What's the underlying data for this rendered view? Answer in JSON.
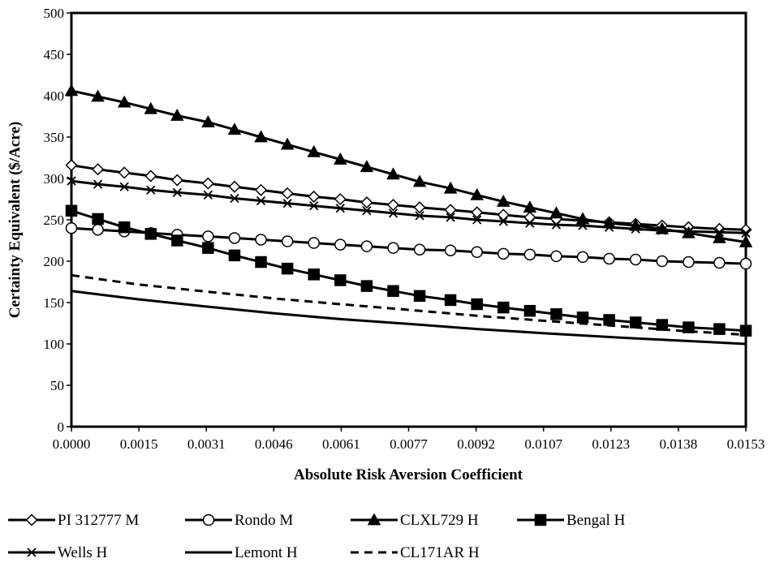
{
  "chart_data": {
    "type": "line",
    "title": "",
    "xlabel": "Absolute Risk Aversion Coefficient",
    "ylabel": "Certainty Equivalent ($/Acre)",
    "xlim": [
      0,
      0.0153
    ],
    "ylim": [
      0,
      500
    ],
    "y_ticks": [
      0,
      50,
      100,
      150,
      200,
      250,
      300,
      350,
      400,
      450,
      500
    ],
    "x_tick_labels": [
      "0.0000",
      "0.0015",
      "0.0031",
      "0.0046",
      "0.0061",
      "0.0077",
      "0.0092",
      "0.0107",
      "0.0123",
      "0.0138",
      "0.0153"
    ],
    "grid": false,
    "legend_position": "bottom",
    "series": [
      {
        "name": "PI 312777 M",
        "marker": "diamond-open",
        "dash": "solid",
        "x": [
          0,
          0.0006,
          0.0012,
          0.0018,
          0.0024,
          0.0031,
          0.0037,
          0.0043,
          0.0049,
          0.0055,
          0.0061,
          0.0067,
          0.0073,
          0.0079,
          0.0086,
          0.0092,
          0.0098,
          0.0104,
          0.011,
          0.0116,
          0.0122,
          0.0128,
          0.0134,
          0.014,
          0.0147,
          0.0153
        ],
        "values": [
          316,
          311,
          307,
          303,
          298,
          294,
          290,
          286,
          282,
          278,
          275,
          271,
          268,
          265,
          262,
          259,
          256,
          253,
          251,
          249,
          247,
          245,
          243,
          241,
          239,
          238
        ]
      },
      {
        "name": "Rondo M",
        "marker": "circle-open",
        "dash": "solid",
        "x": [
          0,
          0.0006,
          0.0012,
          0.0018,
          0.0024,
          0.0031,
          0.0037,
          0.0043,
          0.0049,
          0.0055,
          0.0061,
          0.0067,
          0.0073,
          0.0079,
          0.0086,
          0.0092,
          0.0098,
          0.0104,
          0.011,
          0.0116,
          0.0122,
          0.0128,
          0.0134,
          0.014,
          0.0147,
          0.0153
        ],
        "values": [
          240,
          238,
          236,
          234,
          232,
          230,
          228,
          226,
          224,
          222,
          220,
          218,
          216,
          214,
          213,
          211,
          209,
          208,
          206,
          205,
          203,
          202,
          200,
          199,
          198,
          197
        ]
      },
      {
        "name": "CLXL729 H",
        "marker": "triangle-filled",
        "dash": "solid",
        "x": [
          0,
          0.0006,
          0.0012,
          0.0018,
          0.0024,
          0.0031,
          0.0037,
          0.0043,
          0.0049,
          0.0055,
          0.0061,
          0.0067,
          0.0073,
          0.0079,
          0.0086,
          0.0092,
          0.0098,
          0.0104,
          0.011,
          0.0116,
          0.0122,
          0.0128,
          0.0134,
          0.014,
          0.0147,
          0.0153
        ],
        "values": [
          406,
          399,
          392,
          384,
          376,
          368,
          359,
          350,
          341,
          332,
          323,
          314,
          305,
          296,
          288,
          280,
          272,
          265,
          258,
          251,
          246,
          243,
          239,
          234,
          228,
          223
        ]
      },
      {
        "name": "Bengal H",
        "marker": "square-filled",
        "dash": "solid",
        "x": [
          0,
          0.0006,
          0.0012,
          0.0018,
          0.0024,
          0.0031,
          0.0037,
          0.0043,
          0.0049,
          0.0055,
          0.0061,
          0.0067,
          0.0073,
          0.0079,
          0.0086,
          0.0092,
          0.0098,
          0.0104,
          0.011,
          0.0116,
          0.0122,
          0.0128,
          0.0134,
          0.014,
          0.0147,
          0.0153
        ],
        "values": [
          261,
          251,
          241,
          233,
          225,
          216,
          207,
          199,
          191,
          184,
          177,
          170,
          164,
          158,
          153,
          148,
          144,
          140,
          136,
          132,
          129,
          126,
          123,
          120,
          118,
          116
        ]
      },
      {
        "name": "Wells H",
        "marker": "x",
        "dash": "solid",
        "x": [
          0,
          0.0006,
          0.0012,
          0.0018,
          0.0024,
          0.0031,
          0.0037,
          0.0043,
          0.0049,
          0.0055,
          0.0061,
          0.0067,
          0.0073,
          0.0079,
          0.0086,
          0.0092,
          0.0098,
          0.0104,
          0.011,
          0.0116,
          0.0122,
          0.0128,
          0.0134,
          0.014,
          0.0147,
          0.0153
        ],
        "values": [
          297,
          293,
          290,
          286,
          283,
          280,
          276,
          273,
          270,
          267,
          264,
          261,
          258,
          255,
          253,
          250,
          248,
          246,
          244,
          243,
          241,
          239,
          237,
          236,
          235,
          234
        ]
      },
      {
        "name": "Lemont H",
        "marker": "none",
        "dash": "solid",
        "x": [
          0,
          0.0015,
          0.0031,
          0.0046,
          0.0061,
          0.0077,
          0.0092,
          0.0107,
          0.0123,
          0.0138,
          0.0153
        ],
        "values": [
          164,
          154,
          145,
          137,
          130,
          124,
          118,
          113,
          108,
          104,
          100
        ]
      },
      {
        "name": "CL171AR H",
        "marker": "none",
        "dash": "dashed",
        "x": [
          0,
          0.0015,
          0.0031,
          0.0046,
          0.0061,
          0.0077,
          0.0092,
          0.0107,
          0.0123,
          0.0138,
          0.0153
        ],
        "values": [
          183,
          172,
          163,
          155,
          148,
          141,
          134,
          128,
          122,
          116,
          111
        ]
      }
    ]
  }
}
